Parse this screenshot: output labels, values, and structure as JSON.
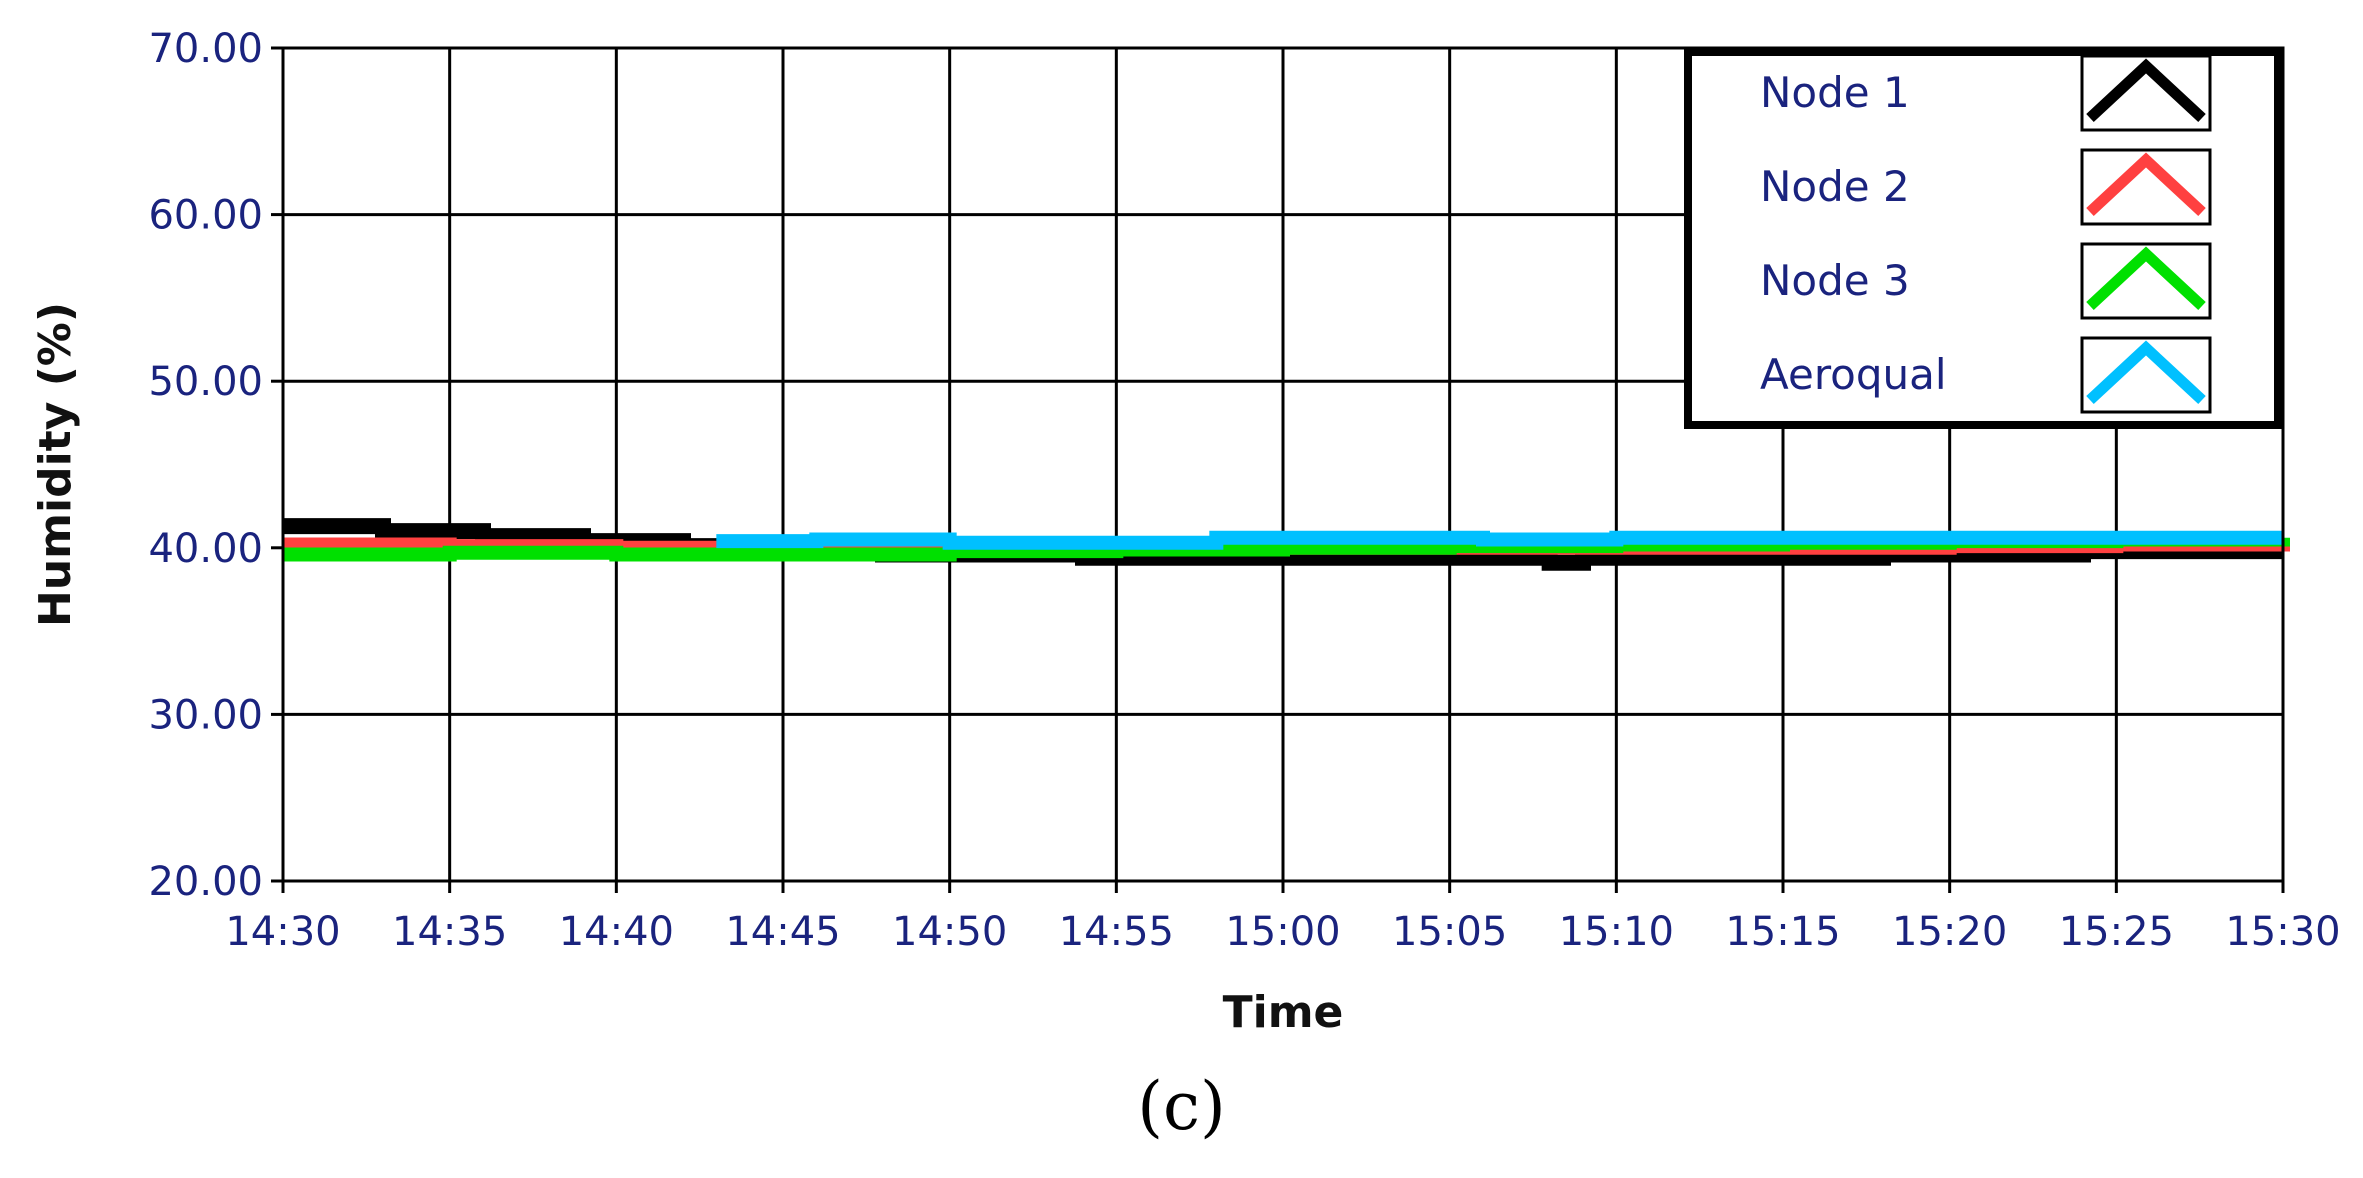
{
  "chart_data": {
    "type": "line",
    "title": "",
    "xlabel": "Time",
    "ylabel": "Humidity (%)",
    "xlim": [
      "14:30",
      "15:30"
    ],
    "ylim": [
      20,
      70
    ],
    "grid": true,
    "legend_position": "top-right",
    "x_ticks": [
      "14:30",
      "14:35",
      "14:40",
      "14:45",
      "14:50",
      "14:55",
      "15:00",
      "15:05",
      "15:10",
      "15:15",
      "15:20",
      "15:25",
      "15:30"
    ],
    "y_ticks": [
      "20.00",
      "30.00",
      "40.00",
      "50.00",
      "60.00",
      "70.00"
    ],
    "series": [
      {
        "name": "Node 1",
        "color": "#000000",
        "x": [
          "14:30",
          "14:33",
          "14:36",
          "14:39",
          "14:42",
          "14:45",
          "14:48",
          "14:51",
          "14:54",
          "14:57",
          "15:00",
          "15:03",
          "15:06",
          "15:08",
          "15:09",
          "15:12",
          "15:15",
          "15:18",
          "15:21",
          "15:24",
          "15:27",
          "15:30"
        ],
        "y": [
          41.3,
          41.0,
          40.7,
          40.4,
          40.1,
          39.8,
          39.6,
          39.6,
          39.4,
          39.4,
          39.4,
          39.4,
          39.4,
          39.1,
          39.4,
          39.4,
          39.4,
          39.6,
          39.6,
          39.8,
          39.8,
          39.8
        ]
      },
      {
        "name": "Node 2",
        "color": "#ff4040",
        "x": [
          "14:30",
          "14:35",
          "14:40",
          "14:45",
          "14:50",
          "14:55",
          "15:00",
          "15:05",
          "15:10",
          "15:15",
          "15:20",
          "15:25",
          "15:30"
        ],
        "y": [
          40.2,
          40.1,
          40.0,
          40.0,
          40.0,
          40.0,
          40.0,
          40.0,
          40.0,
          40.0,
          40.1,
          40.2,
          40.3
        ]
      },
      {
        "name": "Node 3",
        "color": "#00e000",
        "x": [
          "14:30",
          "14:35",
          "14:40",
          "14:45",
          "14:50",
          "14:55",
          "15:00",
          "15:05",
          "15:10",
          "15:15",
          "15:20",
          "15:25",
          "15:30"
        ],
        "y": [
          39.6,
          39.7,
          39.6,
          39.6,
          39.8,
          39.9,
          40.0,
          40.1,
          40.2,
          40.3,
          40.4,
          40.5,
          40.6
        ]
      },
      {
        "name": "Aeroqual",
        "color": "#00c0ff",
        "x": [
          "14:43",
          "14:46",
          "14:50",
          "14:54",
          "14:58",
          "15:02",
          "15:06",
          "15:10",
          "15:14",
          "15:18",
          "15:22",
          "15:26",
          "15:30"
        ],
        "y": [
          40.4,
          40.5,
          40.3,
          40.3,
          40.6,
          40.6,
          40.5,
          40.6,
          40.6,
          40.6,
          40.6,
          40.6,
          40.6
        ]
      }
    ]
  },
  "caption": "(c)"
}
